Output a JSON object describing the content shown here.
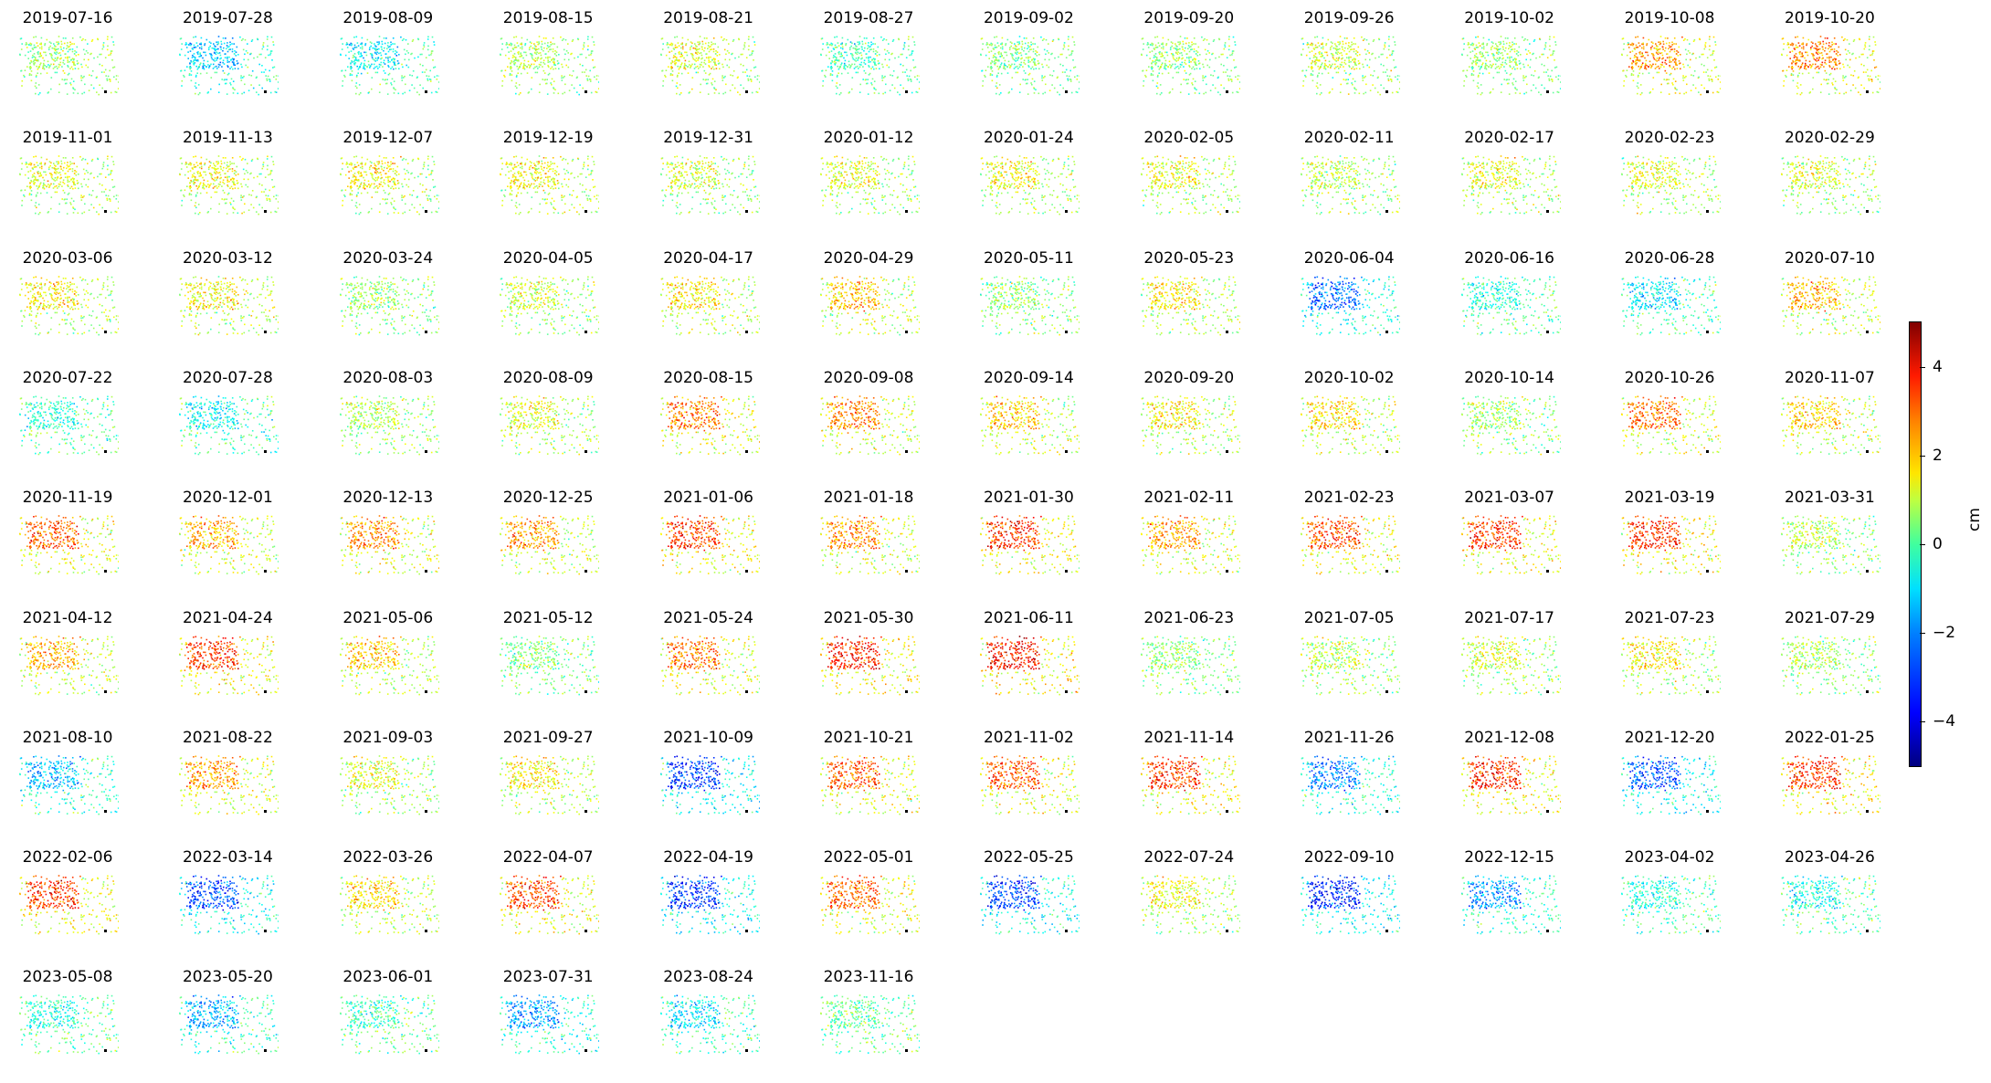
{
  "chart_data": {
    "type": "scatter",
    "description_note": "",
    "panels": [
      {
        "date": "2019-07-16",
        "mean": 0.3
      },
      {
        "date": "2019-07-28",
        "mean": -1.8
      },
      {
        "date": "2019-08-09",
        "mean": -1.2
      },
      {
        "date": "2019-08-15",
        "mean": 0.5
      },
      {
        "date": "2019-08-21",
        "mean": 1.0
      },
      {
        "date": "2019-08-27",
        "mean": -0.6
      },
      {
        "date": "2019-09-02",
        "mean": 0.0
      },
      {
        "date": "2019-09-20",
        "mean": 0.2
      },
      {
        "date": "2019-09-26",
        "mean": 0.8
      },
      {
        "date": "2019-10-02",
        "mean": 0.3
      },
      {
        "date": "2019-10-08",
        "mean": 2.2
      },
      {
        "date": "2019-10-20",
        "mean": 2.5
      },
      {
        "date": "2019-11-01",
        "mean": 1.0
      },
      {
        "date": "2019-11-13",
        "mean": 1.2
      },
      {
        "date": "2019-12-07",
        "mean": 1.3
      },
      {
        "date": "2019-12-19",
        "mean": 1.2
      },
      {
        "date": "2019-12-31",
        "mean": 0.8
      },
      {
        "date": "2020-01-12",
        "mean": 1.0
      },
      {
        "date": "2020-01-24",
        "mean": 1.2
      },
      {
        "date": "2020-02-05",
        "mean": 1.1
      },
      {
        "date": "2020-02-11",
        "mean": 0.6
      },
      {
        "date": "2020-02-17",
        "mean": 1.1
      },
      {
        "date": "2020-02-23",
        "mean": 1.0
      },
      {
        "date": "2020-02-29",
        "mean": 0.9
      },
      {
        "date": "2020-03-06",
        "mean": 1.4
      },
      {
        "date": "2020-03-12",
        "mean": 1.3
      },
      {
        "date": "2020-03-24",
        "mean": 0.3
      },
      {
        "date": "2020-04-05",
        "mean": 0.8
      },
      {
        "date": "2020-04-17",
        "mean": 1.5
      },
      {
        "date": "2020-04-29",
        "mean": 1.8
      },
      {
        "date": "2020-05-11",
        "mean": 0.2
      },
      {
        "date": "2020-05-23",
        "mean": 1.4
      },
      {
        "date": "2020-06-04",
        "mean": -2.6
      },
      {
        "date": "2020-06-16",
        "mean": -0.8
      },
      {
        "date": "2020-06-28",
        "mean": -1.4
      },
      {
        "date": "2020-07-10",
        "mean": 1.9
      },
      {
        "date": "2020-07-22",
        "mean": -0.8
      },
      {
        "date": "2020-07-28",
        "mean": -1.2
      },
      {
        "date": "2020-08-03",
        "mean": 0.6
      },
      {
        "date": "2020-08-09",
        "mean": 1.0
      },
      {
        "date": "2020-08-15",
        "mean": 2.6
      },
      {
        "date": "2020-09-08",
        "mean": 2.4
      },
      {
        "date": "2020-09-14",
        "mean": 1.8
      },
      {
        "date": "2020-09-20",
        "mean": 1.4
      },
      {
        "date": "2020-10-02",
        "mean": 1.5
      },
      {
        "date": "2020-10-14",
        "mean": 0.4
      },
      {
        "date": "2020-10-26",
        "mean": 2.6
      },
      {
        "date": "2020-11-07",
        "mean": 1.7
      },
      {
        "date": "2020-11-19",
        "mean": 2.8
      },
      {
        "date": "2020-12-01",
        "mean": 2.0
      },
      {
        "date": "2020-12-13",
        "mean": 2.4
      },
      {
        "date": "2020-12-25",
        "mean": 2.2
      },
      {
        "date": "2021-01-06",
        "mean": 3.2
      },
      {
        "date": "2021-01-18",
        "mean": 2.4
      },
      {
        "date": "2021-01-30",
        "mean": 3.2
      },
      {
        "date": "2021-02-11",
        "mean": 2.2
      },
      {
        "date": "2021-02-23",
        "mean": 3.0
      },
      {
        "date": "2021-03-07",
        "mean": 3.2
      },
      {
        "date": "2021-03-19",
        "mean": 3.2
      },
      {
        "date": "2021-03-31",
        "mean": 0.6
      },
      {
        "date": "2021-04-12",
        "mean": 2.0
      },
      {
        "date": "2021-04-24",
        "mean": 3.2
      },
      {
        "date": "2021-05-06",
        "mean": 1.8
      },
      {
        "date": "2021-05-12",
        "mean": 0.0
      },
      {
        "date": "2021-05-24",
        "mean": 2.6
      },
      {
        "date": "2021-05-30",
        "mean": 3.4
      },
      {
        "date": "2021-06-11",
        "mean": 3.6
      },
      {
        "date": "2021-06-23",
        "mean": 0.2
      },
      {
        "date": "2021-07-05",
        "mean": 0.6
      },
      {
        "date": "2021-07-17",
        "mean": 0.9
      },
      {
        "date": "2021-07-23",
        "mean": 1.4
      },
      {
        "date": "2021-07-29",
        "mean": 0.5
      },
      {
        "date": "2021-08-10",
        "mean": -1.8
      },
      {
        "date": "2021-08-22",
        "mean": 2.2
      },
      {
        "date": "2021-09-03",
        "mean": 1.0
      },
      {
        "date": "2021-09-27",
        "mean": 1.4
      },
      {
        "date": "2021-10-09",
        "mean": -3.2
      },
      {
        "date": "2021-10-21",
        "mean": 2.8
      },
      {
        "date": "2021-11-02",
        "mean": 2.8
      },
      {
        "date": "2021-11-14",
        "mean": 3.2
      },
      {
        "date": "2021-11-26",
        "mean": -2.4
      },
      {
        "date": "2021-12-08",
        "mean": 3.4
      },
      {
        "date": "2021-12-20",
        "mean": -2.8
      },
      {
        "date": "2022-01-25",
        "mean": 3.2
      },
      {
        "date": "2022-02-06",
        "mean": 3.2
      },
      {
        "date": "2022-03-14",
        "mean": -3.0
      },
      {
        "date": "2022-03-26",
        "mean": 1.6
      },
      {
        "date": "2022-04-07",
        "mean": 3.0
      },
      {
        "date": "2022-04-19",
        "mean": -3.2
      },
      {
        "date": "2022-05-01",
        "mean": 2.8
      },
      {
        "date": "2022-05-25",
        "mean": -3.0
      },
      {
        "date": "2022-07-24",
        "mean": 1.2
      },
      {
        "date": "2022-09-10",
        "mean": -3.4
      },
      {
        "date": "2022-12-15",
        "mean": -2.2
      },
      {
        "date": "2023-04-02",
        "mean": -1.0
      },
      {
        "date": "2023-04-26",
        "mean": -1.0
      },
      {
        "date": "2023-05-08",
        "mean": -0.8
      },
      {
        "date": "2023-05-20",
        "mean": -2.0
      },
      {
        "date": "2023-06-01",
        "mean": -0.6
      },
      {
        "date": "2023-07-31",
        "mean": -2.2
      },
      {
        "date": "2023-08-24",
        "mean": -1.4
      },
      {
        "date": "2023-11-16",
        "mean": -0.2
      }
    ],
    "colorbar": {
      "label": "cm",
      "range": [
        -5,
        5
      ],
      "colormap": "jet",
      "ticks": [
        4,
        2,
        0,
        -2,
        -4
      ],
      "tick_labels": [
        "4",
        "2",
        "0",
        "−2",
        "−4"
      ]
    },
    "columns": 12,
    "rows": 9
  }
}
